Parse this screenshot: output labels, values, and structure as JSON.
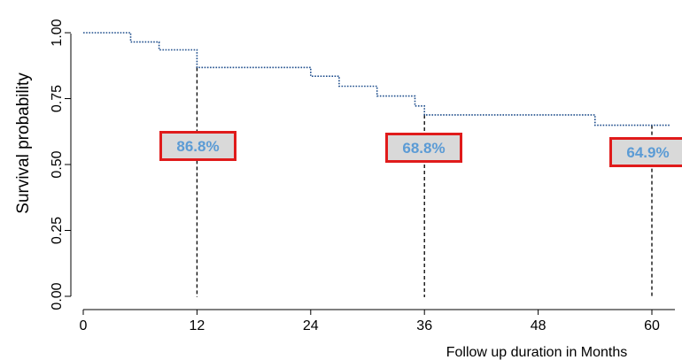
{
  "chart_data": {
    "type": "line",
    "title": "",
    "xlabel": "Follow up duration in Months",
    "ylabel": "Survival probability",
    "xlim": [
      0,
      60
    ],
    "ylim": [
      0,
      1
    ],
    "x_ticks": [
      0,
      12,
      24,
      36,
      48,
      60
    ],
    "y_ticks": [
      "0.00",
      "0.25",
      "0.50",
      "0.75",
      "1.00"
    ],
    "grid": false,
    "series": [
      {
        "name": "",
        "color": "#1f4e8c",
        "step_x": [
          0,
          5,
          8,
          12,
          24,
          27,
          31,
          35,
          36,
          54,
          62
        ],
        "step_y": [
          1.0,
          0.965,
          0.935,
          0.868,
          0.835,
          0.797,
          0.76,
          0.722,
          0.688,
          0.649,
          0.649
        ]
      }
    ],
    "annotations": [
      {
        "x": 12,
        "label": "86.8%"
      },
      {
        "x": 36,
        "label": "68.8%"
      },
      {
        "x": 60,
        "label": "64.9%"
      }
    ],
    "colors": {
      "axis": "#000000",
      "curve": "#1f4e8c",
      "box_border": "#e01b1b",
      "box_fill": "#d9d9d9",
      "box_text": "#5b9bd5"
    }
  }
}
